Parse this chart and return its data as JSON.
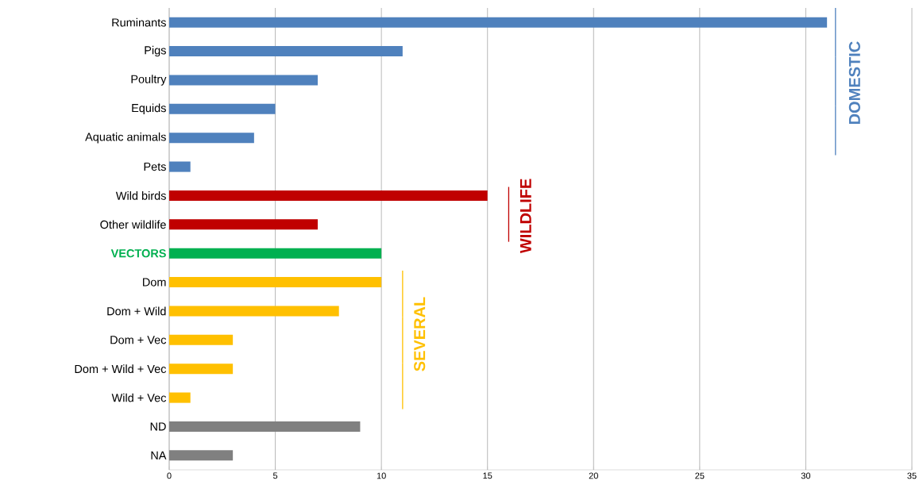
{
  "chart_data": {
    "type": "bar",
    "orientation": "horizontal",
    "categories": [
      "Ruminants",
      "Pigs",
      "Poultry",
      "Equids",
      "Aquatic animals",
      "Pets",
      "Wild birds",
      "Other wildlife",
      "VECTORS",
      "Dom",
      "Dom + Wild",
      "Dom + Vec",
      "Dom + Wild + Vec",
      "Wild + Vec",
      "ND",
      "NA"
    ],
    "values": [
      31,
      11,
      7,
      5,
      4,
      1,
      15,
      7,
      10,
      10,
      8,
      3,
      3,
      1,
      9,
      3
    ],
    "colors": [
      "#4f81bd",
      "#4f81bd",
      "#4f81bd",
      "#4f81bd",
      "#4f81bd",
      "#4f81bd",
      "#c00000",
      "#c00000",
      "#00b050",
      "#ffc000",
      "#ffc000",
      "#ffc000",
      "#ffc000",
      "#ffc000",
      "#808080",
      "#808080"
    ],
    "xlim": [
      0,
      35
    ],
    "xticks": [
      0,
      5,
      10,
      15,
      20,
      25,
      30,
      35
    ],
    "grid": "x",
    "annotations": [
      "DOMESTIC",
      "WILDLIFE",
      "SEVERAL"
    ]
  }
}
